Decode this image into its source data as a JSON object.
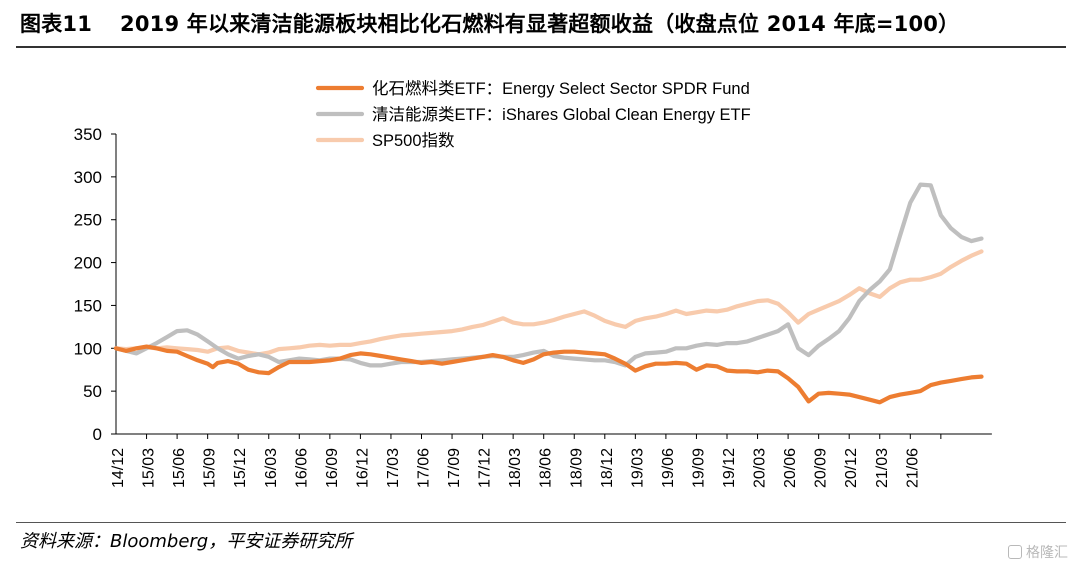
{
  "header": {
    "figure_no": "图表11",
    "title": "2019 年以来清洁能源板块相比化石燃料有显著超额收益（收盘点位 2014 年底=100）"
  },
  "footer": {
    "source": "资料来源：Bloomberg，平安证券研究所",
    "watermark": "格隆汇"
  },
  "chart_data": {
    "type": "line",
    "ylim": [
      0,
      350
    ],
    "yticks": [
      0,
      50,
      100,
      150,
      200,
      250,
      300,
      350
    ],
    "x_ticks": [
      "14/12",
      "15/03",
      "15/06",
      "15/09",
      "15/12",
      "16/03",
      "16/06",
      "16/09",
      "16/12",
      "17/03",
      "17/06",
      "17/09",
      "17/12",
      "18/03",
      "18/06",
      "18/09",
      "18/12",
      "19/03",
      "19/06",
      "19/09",
      "19/12",
      "20/03",
      "20/06",
      "20/09",
      "20/12",
      "21/03",
      "21/06"
    ],
    "legend_position": "top",
    "series": [
      {
        "name": "化石燃料类ETF：Energy Select Sector SPDR Fund",
        "color": "#ED7D31",
        "points": [
          [
            0,
            100
          ],
          [
            0.33,
            97
          ],
          [
            0.67,
            100
          ],
          [
            1,
            102
          ],
          [
            1.33,
            100
          ],
          [
            1.67,
            97
          ],
          [
            2,
            96
          ],
          [
            2.33,
            91
          ],
          [
            2.67,
            86
          ],
          [
            3,
            82
          ],
          [
            3.17,
            78
          ],
          [
            3.33,
            83
          ],
          [
            3.67,
            85
          ],
          [
            4,
            82
          ],
          [
            4.33,
            75
          ],
          [
            4.67,
            72
          ],
          [
            5,
            71
          ],
          [
            5.33,
            78
          ],
          [
            5.67,
            84
          ],
          [
            6,
            84
          ],
          [
            6.33,
            84
          ],
          [
            6.67,
            85
          ],
          [
            7,
            86
          ],
          [
            7.33,
            88
          ],
          [
            7.67,
            92
          ],
          [
            8,
            94
          ],
          [
            8.33,
            93
          ],
          [
            8.67,
            91
          ],
          [
            9,
            89
          ],
          [
            9.33,
            87
          ],
          [
            9.67,
            85
          ],
          [
            10,
            83
          ],
          [
            10.33,
            84
          ],
          [
            10.67,
            82
          ],
          [
            11,
            84
          ],
          [
            11.33,
            86
          ],
          [
            11.67,
            88
          ],
          [
            12,
            90
          ],
          [
            12.33,
            92
          ],
          [
            12.67,
            90
          ],
          [
            13,
            86
          ],
          [
            13.33,
            83
          ],
          [
            13.67,
            87
          ],
          [
            14,
            93
          ],
          [
            14.33,
            95
          ],
          [
            14.67,
            96
          ],
          [
            15,
            96
          ],
          [
            15.33,
            95
          ],
          [
            15.67,
            94
          ],
          [
            16,
            93
          ],
          [
            16.33,
            88
          ],
          [
            16.67,
            82
          ],
          [
            17,
            74
          ],
          [
            17.33,
            79
          ],
          [
            17.67,
            82
          ],
          [
            18,
            82
          ],
          [
            18.33,
            83
          ],
          [
            18.67,
            82
          ],
          [
            19,
            75
          ],
          [
            19.33,
            80
          ],
          [
            19.67,
            79
          ],
          [
            20,
            74
          ],
          [
            20.33,
            73
          ],
          [
            20.67,
            73
          ],
          [
            21,
            72
          ],
          [
            21.33,
            74
          ],
          [
            21.67,
            73
          ],
          [
            22,
            65
          ],
          [
            22.33,
            55
          ],
          [
            22.67,
            38
          ],
          [
            23,
            47
          ],
          [
            23.33,
            48
          ],
          [
            23.67,
            47
          ],
          [
            24,
            46
          ],
          [
            24.33,
            43
          ],
          [
            24.67,
            40
          ],
          [
            25,
            37
          ],
          [
            25.33,
            43
          ],
          [
            25.67,
            46
          ],
          [
            26,
            48
          ],
          [
            26.33,
            50
          ],
          [
            26.67,
            57
          ],
          [
            27,
            60
          ],
          [
            27.33,
            62
          ],
          [
            27.67,
            64
          ],
          [
            28,
            66
          ],
          [
            28.33,
            67
          ]
        ]
      },
      {
        "name": "清洁能源类ETF：iShares Global Clean Energy ETF",
        "color": "#BFBFBF",
        "points": [
          [
            0,
            100
          ],
          [
            0.33,
            97
          ],
          [
            0.67,
            94
          ],
          [
            1,
            100
          ],
          [
            1.33,
            106
          ],
          [
            1.67,
            113
          ],
          [
            2,
            120
          ],
          [
            2.33,
            121
          ],
          [
            2.67,
            116
          ],
          [
            3,
            108
          ],
          [
            3.33,
            100
          ],
          [
            3.67,
            93
          ],
          [
            4,
            88
          ],
          [
            4.33,
            91
          ],
          [
            4.67,
            93
          ],
          [
            5,
            90
          ],
          [
            5.33,
            84
          ],
          [
            5.67,
            86
          ],
          [
            6,
            88
          ],
          [
            6.33,
            87
          ],
          [
            6.67,
            86
          ],
          [
            7,
            88
          ],
          [
            7.33,
            88
          ],
          [
            7.67,
            87
          ],
          [
            8,
            83
          ],
          [
            8.33,
            80
          ],
          [
            8.67,
            80
          ],
          [
            9,
            82
          ],
          [
            9.33,
            84
          ],
          [
            9.67,
            84
          ],
          [
            10,
            84
          ],
          [
            10.33,
            85
          ],
          [
            10.67,
            86
          ],
          [
            11,
            87
          ],
          [
            11.33,
            88
          ],
          [
            11.67,
            89
          ],
          [
            12,
            90
          ],
          [
            12.33,
            91
          ],
          [
            12.67,
            90
          ],
          [
            13,
            90
          ],
          [
            13.33,
            92
          ],
          [
            13.67,
            95
          ],
          [
            14,
            97
          ],
          [
            14.33,
            91
          ],
          [
            14.67,
            89
          ],
          [
            15,
            88
          ],
          [
            15.33,
            87
          ],
          [
            15.67,
            86
          ],
          [
            16,
            86
          ],
          [
            16.33,
            84
          ],
          [
            16.67,
            80
          ],
          [
            17,
            90
          ],
          [
            17.33,
            94
          ],
          [
            17.67,
            95
          ],
          [
            18,
            96
          ],
          [
            18.33,
            100
          ],
          [
            18.67,
            100
          ],
          [
            19,
            103
          ],
          [
            19.33,
            105
          ],
          [
            19.67,
            104
          ],
          [
            20,
            106
          ],
          [
            20.33,
            106
          ],
          [
            20.67,
            108
          ],
          [
            21,
            112
          ],
          [
            21.33,
            116
          ],
          [
            21.67,
            120
          ],
          [
            22,
            128
          ],
          [
            22.33,
            100
          ],
          [
            22.67,
            92
          ],
          [
            23,
            103
          ],
          [
            23.33,
            111
          ],
          [
            23.67,
            120
          ],
          [
            24,
            135
          ],
          [
            24.33,
            155
          ],
          [
            24.67,
            168
          ],
          [
            25,
            178
          ],
          [
            25.33,
            192
          ],
          [
            25.67,
            232
          ],
          [
            26,
            270
          ],
          [
            26.33,
            291
          ],
          [
            26.67,
            290
          ],
          [
            27,
            255
          ],
          [
            27.33,
            240
          ],
          [
            27.67,
            230
          ],
          [
            28,
            225
          ],
          [
            28.33,
            228
          ]
        ]
      },
      {
        "name": "SP500指数",
        "color": "#F8CBAD",
        "points": [
          [
            0,
            100
          ],
          [
            0.33,
            99
          ],
          [
            0.67,
            100
          ],
          [
            1,
            101
          ],
          [
            1.33,
            100
          ],
          [
            1.67,
            101
          ],
          [
            2,
            100
          ],
          [
            2.33,
            99
          ],
          [
            2.67,
            98
          ],
          [
            3,
            96
          ],
          [
            3.33,
            100
          ],
          [
            3.67,
            101
          ],
          [
            4,
            97
          ],
          [
            4.33,
            95
          ],
          [
            4.67,
            93
          ],
          [
            5,
            95
          ],
          [
            5.33,
            99
          ],
          [
            5.67,
            100
          ],
          [
            6,
            101
          ],
          [
            6.33,
            103
          ],
          [
            6.67,
            104
          ],
          [
            7,
            103
          ],
          [
            7.33,
            104
          ],
          [
            7.67,
            104
          ],
          [
            8,
            106
          ],
          [
            8.33,
            108
          ],
          [
            8.67,
            111
          ],
          [
            9,
            113
          ],
          [
            9.33,
            115
          ],
          [
            9.67,
            116
          ],
          [
            10,
            117
          ],
          [
            10.33,
            118
          ],
          [
            10.67,
            119
          ],
          [
            11,
            120
          ],
          [
            11.33,
            122
          ],
          [
            11.67,
            125
          ],
          [
            12,
            127
          ],
          [
            12.33,
            131
          ],
          [
            12.67,
            135
          ],
          [
            13,
            130
          ],
          [
            13.33,
            128
          ],
          [
            13.67,
            128
          ],
          [
            14,
            130
          ],
          [
            14.33,
            133
          ],
          [
            14.67,
            137
          ],
          [
            15,
            140
          ],
          [
            15.33,
            143
          ],
          [
            15.67,
            138
          ],
          [
            16,
            132
          ],
          [
            16.33,
            128
          ],
          [
            16.67,
            125
          ],
          [
            17,
            132
          ],
          [
            17.33,
            135
          ],
          [
            17.67,
            137
          ],
          [
            18,
            140
          ],
          [
            18.33,
            144
          ],
          [
            18.67,
            140
          ],
          [
            19,
            142
          ],
          [
            19.33,
            144
          ],
          [
            19.67,
            143
          ],
          [
            20,
            145
          ],
          [
            20.33,
            149
          ],
          [
            20.67,
            152
          ],
          [
            21,
            155
          ],
          [
            21.33,
            156
          ],
          [
            21.67,
            152
          ],
          [
            22,
            142
          ],
          [
            22.33,
            130
          ],
          [
            22.67,
            140
          ],
          [
            23,
            145
          ],
          [
            23.33,
            150
          ],
          [
            23.67,
            155
          ],
          [
            24,
            162
          ],
          [
            24.33,
            170
          ],
          [
            24.67,
            164
          ],
          [
            25,
            160
          ],
          [
            25.33,
            170
          ],
          [
            25.67,
            177
          ],
          [
            26,
            180
          ],
          [
            26.33,
            180
          ],
          [
            26.67,
            183
          ],
          [
            27,
            187
          ],
          [
            27.33,
            195
          ],
          [
            27.67,
            202
          ],
          [
            28,
            208
          ],
          [
            28.33,
            213
          ]
        ]
      }
    ]
  }
}
